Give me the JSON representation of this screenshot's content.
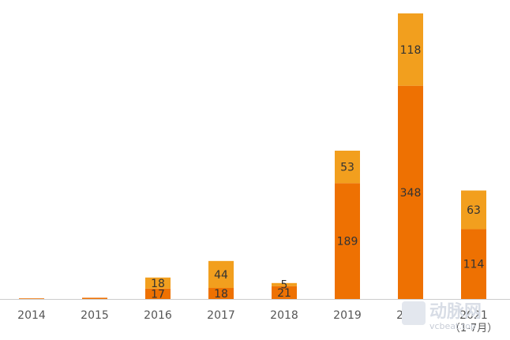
{
  "chart_data": {
    "type": "bar",
    "stacked": true,
    "categories": [
      "2014",
      "2015",
      "2016",
      "2017",
      "2018",
      "2019",
      "2020",
      "2021"
    ],
    "category_sublabels": [
      "",
      "",
      "",
      "",
      "",
      "",
      "",
      "（1-7月）"
    ],
    "series": [
      {
        "values": [
          1,
          2,
          17,
          18,
          21,
          189,
          348,
          114
        ],
        "labels": [
          "",
          "",
          "17",
          "18",
          "21",
          "189",
          "348",
          "114"
        ],
        "color": "#EE7102"
      },
      {
        "values": [
          0,
          0,
          18,
          44,
          5,
          53,
          118,
          63
        ],
        "labels": [
          "",
          "",
          "18",
          "44",
          "5",
          "53",
          "118",
          "63"
        ],
        "color": "#F29F1E"
      }
    ],
    "ylim": [
      0,
      466
    ],
    "grid": false,
    "legend": "none"
  },
  "watermark": {
    "text": "动脉网",
    "sub": "vcbeat.top"
  }
}
